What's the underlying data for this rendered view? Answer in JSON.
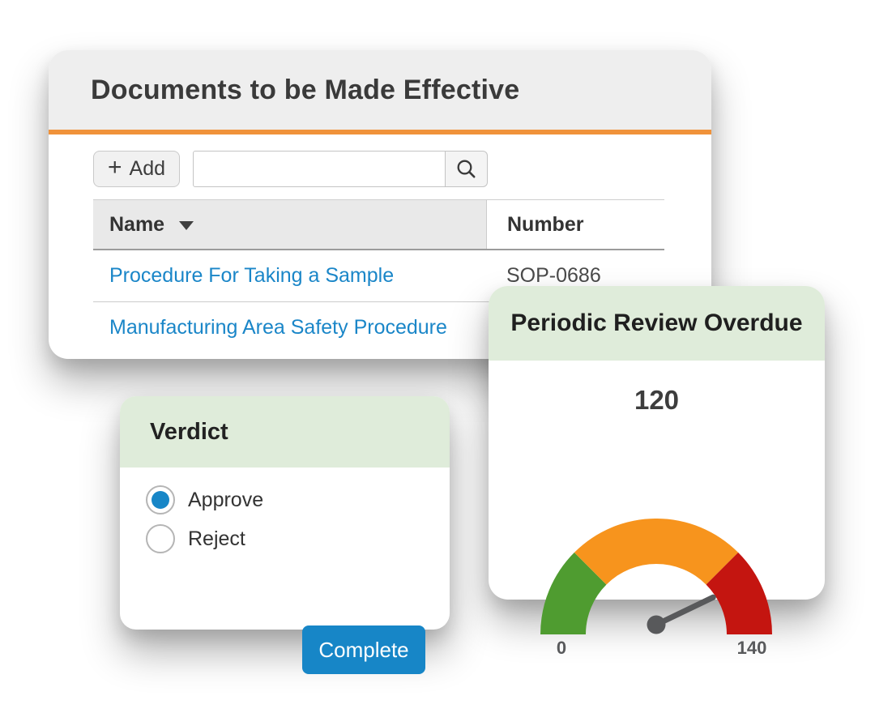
{
  "documents_card": {
    "title": "Documents to be Made Effective",
    "accent_color": "#f0923a",
    "toolbar": {
      "add_plus": "+",
      "add_label": "Add",
      "search_value": "",
      "search_placeholder": ""
    },
    "table": {
      "columns": [
        {
          "label": "Name",
          "sorted": true
        },
        {
          "label": "Number",
          "sorted": false
        }
      ],
      "rows": [
        {
          "name": "Procedure For Taking a Sample",
          "number": "SOP-0686"
        },
        {
          "name": "Manufacturing Area Safety Procedure",
          "number": ""
        }
      ]
    }
  },
  "verdict_card": {
    "title": "Verdict",
    "options": [
      {
        "label": "Approve",
        "selected": true
      },
      {
        "label": "Reject",
        "selected": false
      }
    ],
    "complete_button_label": "Complete"
  },
  "gauge_card": {
    "title": "Periodic Review Overdue"
  },
  "chart_data": {
    "type": "gauge",
    "title": "Periodic Review Overdue",
    "value": 120,
    "value_label": "120",
    "min": 0,
    "max": 140,
    "min_label": "0",
    "max_label": "140",
    "start_angle_deg": 180,
    "end_angle_deg": 0,
    "segments": [
      {
        "from": 0,
        "to": 35,
        "color": "#4f9c30"
      },
      {
        "from": 35,
        "to": 105,
        "color": "#f7941d"
      },
      {
        "from": 105,
        "to": 140,
        "color": "#c41510"
      }
    ],
    "needle_color": "#58595b"
  },
  "colors": {
    "header_gray": "#eeeeee",
    "header_green": "#dfecda",
    "brand_blue": "#1786c7",
    "link_blue": "#1a86c8",
    "accent_orange": "#f0923a"
  }
}
